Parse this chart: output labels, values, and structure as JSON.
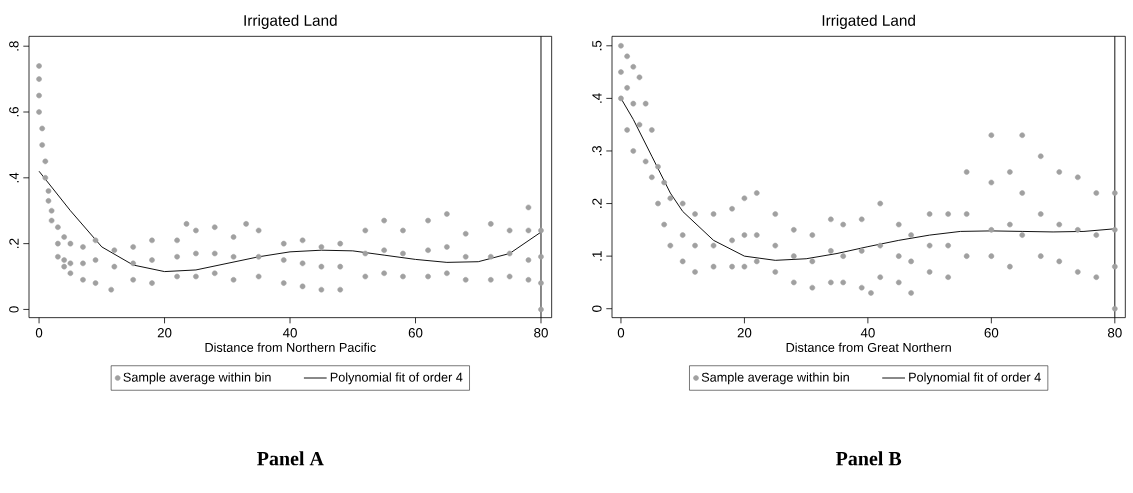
{
  "chart_data": [
    {
      "type": "scatter",
      "title": "Irrigated Land",
      "xlabel": "Distance from Northern Pacific",
      "xlim": [
        -1.6,
        81.7
      ],
      "ylim": [
        -0.025,
        0.83
      ],
      "xticks": [
        0,
        20,
        40,
        60,
        80
      ],
      "yticks": [
        {
          "value": 0,
          "label": "0"
        },
        {
          "value": 0.2,
          "label": ".2"
        },
        {
          "value": 0.4,
          "label": ".4"
        },
        {
          "value": 0.6,
          "label": ".6"
        },
        {
          "value": 0.8,
          "label": ".8"
        }
      ],
      "legend": "bottom",
      "ref_lines": [
        {
          "axis": "x",
          "value": 80,
          "color": "#000000"
        }
      ],
      "annotations": [
        "Panel A"
      ],
      "series": [
        {
          "name": "Sample average within bin",
          "marker": "circle",
          "color": "#a0a0a0",
          "x": [
            0,
            0,
            0,
            0,
            0.5,
            0.5,
            1,
            1,
            1.5,
            1.5,
            2,
            2,
            3,
            3,
            3,
            4,
            4,
            4,
            5,
            5,
            5,
            7,
            7,
            7,
            9,
            9,
            9,
            12,
            12,
            11.5,
            15,
            15,
            15,
            18,
            18,
            18,
            22,
            22,
            22,
            23.5,
            25,
            25,
            25,
            28,
            28,
            28,
            31,
            31,
            31,
            33,
            35,
            35,
            35,
            39,
            39,
            39,
            42,
            42,
            42,
            45,
            45,
            45,
            48,
            48,
            48,
            52,
            52,
            52,
            55,
            55,
            55,
            58,
            58,
            58,
            62,
            62,
            62,
            65,
            65,
            65,
            68,
            68,
            68,
            72,
            72,
            72,
            75,
            75,
            75,
            78,
            78,
            78,
            78,
            80,
            80,
            80,
            80
          ],
          "values": [
            0.74,
            0.7,
            0.65,
            0.6,
            0.55,
            0.5,
            0.45,
            0.4,
            0.36,
            0.33,
            0.3,
            0.27,
            0.25,
            0.2,
            0.16,
            0.22,
            0.15,
            0.13,
            0.2,
            0.14,
            0.11,
            0.19,
            0.14,
            0.09,
            0.21,
            0.15,
            0.08,
            0.18,
            0.13,
            0.06,
            0.19,
            0.14,
            0.09,
            0.21,
            0.15,
            0.08,
            0.21,
            0.16,
            0.1,
            0.26,
            0.24,
            0.17,
            0.1,
            0.25,
            0.17,
            0.11,
            0.22,
            0.16,
            0.09,
            0.26,
            0.24,
            0.16,
            0.1,
            0.2,
            0.15,
            0.08,
            0.21,
            0.14,
            0.07,
            0.19,
            0.13,
            0.06,
            0.2,
            0.13,
            0.06,
            0.24,
            0.17,
            0.1,
            0.27,
            0.18,
            0.11,
            0.24,
            0.17,
            0.1,
            0.27,
            0.18,
            0.1,
            0.29,
            0.19,
            0.11,
            0.23,
            0.16,
            0.09,
            0.26,
            0.16,
            0.09,
            0.24,
            0.17,
            0.1,
            0.31,
            0.24,
            0.15,
            0.09,
            0.24,
            0.16,
            0.08,
            0.0
          ]
        },
        {
          "name": "Polynomial fit of order 4",
          "type": "line",
          "marker": "none",
          "color": "#000000",
          "x": [
            0,
            5,
            10,
            15,
            20,
            25,
            30,
            35,
            40,
            45,
            50,
            55,
            60,
            65,
            70,
            75,
            80
          ],
          "values": [
            0.42,
            0.3,
            0.19,
            0.135,
            0.115,
            0.12,
            0.14,
            0.16,
            0.175,
            0.18,
            0.178,
            0.165,
            0.152,
            0.143,
            0.145,
            0.17,
            0.235
          ]
        }
      ]
    },
    {
      "type": "scatter",
      "title": "Irrigated Land",
      "xlabel": "Distance from Great Northern",
      "xlim": [
        -1.45,
        81.7
      ],
      "ylim": [
        -0.017,
        0.518
      ],
      "xticks": [
        0,
        20,
        40,
        60,
        80
      ],
      "yticks": [
        {
          "value": 0,
          "label": "0"
        },
        {
          "value": 0.1,
          "label": ".1"
        },
        {
          "value": 0.2,
          "label": ".2"
        },
        {
          "value": 0.3,
          "label": ".3"
        },
        {
          "value": 0.4,
          "label": ".4"
        },
        {
          "value": 0.5,
          "label": ".5"
        }
      ],
      "legend": "bottom",
      "ref_lines": [
        {
          "axis": "x",
          "value": 80,
          "color": "#000000"
        }
      ],
      "annotations": [
        "Panel B"
      ],
      "series": [
        {
          "name": "Sample average within bin",
          "marker": "circle",
          "color": "#a0a0a0",
          "x": [
            0,
            0,
            0,
            1,
            1,
            1,
            2,
            2,
            2,
            3,
            3,
            4,
            4,
            5,
            5,
            6,
            6,
            7,
            7,
            8,
            8,
            10,
            10,
            10,
            12,
            12,
            12,
            15,
            15,
            15,
            18,
            18,
            18,
            20,
            20,
            20,
            22,
            22,
            22,
            25,
            25,
            25,
            28,
            28,
            28,
            31,
            31,
            31,
            34,
            34,
            34,
            36,
            36,
            36,
            39,
            39,
            39,
            40.5,
            42,
            42,
            42,
            45,
            45,
            45,
            47,
            47,
            47,
            50,
            50,
            50,
            53,
            53,
            53,
            56,
            56,
            56,
            60,
            60,
            60,
            60,
            63,
            63,
            63,
            65,
            65,
            65,
            68,
            68,
            68,
            71,
            71,
            71,
            74,
            74,
            74,
            77,
            77,
            77,
            80,
            80,
            80,
            80
          ],
          "values": [
            0.5,
            0.45,
            0.4,
            0.48,
            0.42,
            0.34,
            0.46,
            0.39,
            0.3,
            0.44,
            0.35,
            0.39,
            0.28,
            0.34,
            0.25,
            0.27,
            0.2,
            0.24,
            0.16,
            0.21,
            0.12,
            0.2,
            0.14,
            0.09,
            0.18,
            0.12,
            0.07,
            0.18,
            0.12,
            0.08,
            0.19,
            0.13,
            0.08,
            0.21,
            0.14,
            0.08,
            0.22,
            0.14,
            0.09,
            0.18,
            0.12,
            0.07,
            0.15,
            0.1,
            0.05,
            0.14,
            0.09,
            0.04,
            0.17,
            0.11,
            0.05,
            0.16,
            0.1,
            0.05,
            0.17,
            0.11,
            0.04,
            0.03,
            0.2,
            0.12,
            0.06,
            0.16,
            0.1,
            0.05,
            0.14,
            0.09,
            0.03,
            0.18,
            0.12,
            0.07,
            0.18,
            0.12,
            0.06,
            0.26,
            0.18,
            0.1,
            0.33,
            0.24,
            0.15,
            0.1,
            0.26,
            0.16,
            0.08,
            0.33,
            0.22,
            0.14,
            0.29,
            0.18,
            0.1,
            0.26,
            0.16,
            0.09,
            0.25,
            0.15,
            0.07,
            0.22,
            0.14,
            0.06,
            0.22,
            0.15,
            0.08,
            0.0
          ]
        },
        {
          "name": "Polynomial fit of order 4",
          "type": "line",
          "marker": "none",
          "color": "#000000",
          "x": [
            0,
            2,
            5,
            8,
            10,
            15,
            20,
            25,
            30,
            35,
            40,
            45,
            50,
            55,
            60,
            65,
            70,
            75,
            80
          ],
          "values": [
            0.4,
            0.36,
            0.29,
            0.22,
            0.185,
            0.13,
            0.1,
            0.092,
            0.095,
            0.105,
            0.118,
            0.13,
            0.14,
            0.147,
            0.148,
            0.147,
            0.146,
            0.147,
            0.152
          ]
        }
      ]
    }
  ]
}
